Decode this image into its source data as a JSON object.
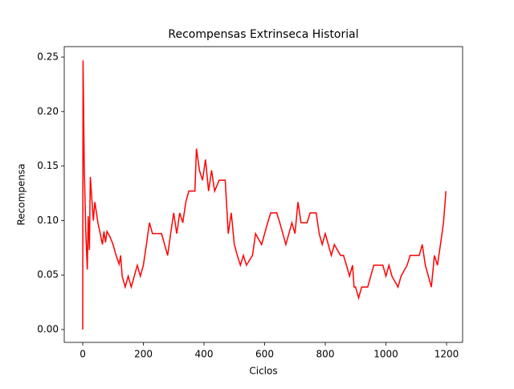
{
  "chart_data": {
    "type": "line",
    "title": "Recompensas Extrinseca Historial",
    "x_label": "Ciclos",
    "y_label": "Recompensa",
    "color": "#ff0000",
    "x": [
      0,
      1,
      5,
      10,
      15,
      18,
      22,
      25,
      30,
      35,
      40,
      50,
      60,
      65,
      70,
      75,
      80,
      90,
      100,
      110,
      120,
      125,
      130,
      140,
      150,
      160,
      170,
      180,
      190,
      200,
      210,
      220,
      230,
      260,
      270,
      280,
      290,
      300,
      310,
      320,
      330,
      340,
      350,
      370,
      375,
      385,
      395,
      405,
      415,
      425,
      435,
      450,
      470,
      480,
      490,
      500,
      510,
      520,
      530,
      540,
      560,
      570,
      590,
      600,
      610,
      620,
      640,
      650,
      660,
      670,
      680,
      690,
      700,
      710,
      720,
      740,
      750,
      770,
      780,
      790,
      800,
      810,
      820,
      830,
      850,
      860,
      870,
      880,
      890,
      895,
      900,
      910,
      920,
      940,
      950,
      960,
      990,
      1000,
      1010,
      1020,
      1040,
      1050,
      1070,
      1080,
      1110,
      1120,
      1130,
      1140,
      1150,
      1160,
      1170,
      1180,
      1190,
      1198
    ],
    "values": [
      0,
      0.247,
      0.15,
      0.09,
      0.055,
      0.104,
      0.073,
      0.14,
      0.12,
      0.1,
      0.117,
      0.098,
      0.085,
      0.078,
      0.09,
      0.08,
      0.09,
      0.085,
      0.078,
      0.068,
      0.06,
      0.068,
      0.049,
      0.039,
      0.049,
      0.039,
      0.049,
      0.059,
      0.049,
      0.059,
      0.078,
      0.098,
      0.088,
      0.088,
      0.078,
      0.068,
      0.088,
      0.107,
      0.088,
      0.107,
      0.098,
      0.117,
      0.127,
      0.127,
      0.166,
      0.146,
      0.137,
      0.156,
      0.127,
      0.146,
      0.127,
      0.137,
      0.137,
      0.088,
      0.107,
      0.078,
      0.068,
      0.059,
      0.068,
      0.059,
      0.068,
      0.088,
      0.078,
      0.088,
      0.098,
      0.107,
      0.107,
      0.098,
      0.088,
      0.078,
      0.088,
      0.098,
      0.088,
      0.117,
      0.098,
      0.098,
      0.107,
      0.107,
      0.088,
      0.078,
      0.088,
      0.078,
      0.068,
      0.078,
      0.068,
      0.068,
      0.059,
      0.049,
      0.059,
      0.039,
      0.039,
      0.029,
      0.039,
      0.039,
      0.049,
      0.059,
      0.059,
      0.049,
      0.059,
      0.049,
      0.039,
      0.049,
      0.059,
      0.068,
      0.068,
      0.078,
      0.059,
      0.049,
      0.039,
      0.068,
      0.059,
      0.078,
      0.098,
      0.127
    ],
    "xlim": [
      -61,
      1253
    ],
    "ylim": [
      -0.0118,
      0.2596
    ],
    "xticks": [
      0,
      200,
      400,
      600,
      800,
      1000,
      1200
    ],
    "yticks": [
      {
        "value": 0,
        "label": "0.00"
      },
      {
        "value": 0.05,
        "label": "0.05"
      },
      {
        "value": 0.1,
        "label": "0.10"
      },
      {
        "value": 0.15,
        "label": "0.15"
      },
      {
        "value": 0.2,
        "label": "0.20"
      },
      {
        "value": 0.25,
        "label": "0.25"
      }
    ]
  }
}
